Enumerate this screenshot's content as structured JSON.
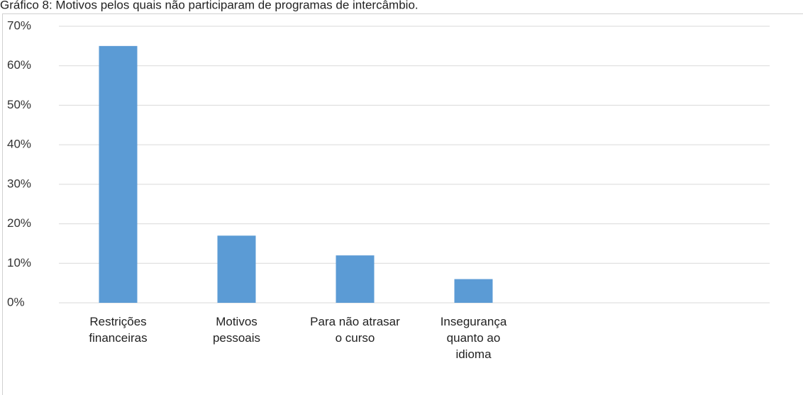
{
  "chart_data": {
    "type": "bar",
    "title": "Gráfico 8: Motivos pelos quais não participaram de programas de intercâmbio.",
    "categories": [
      "Restrições financeiras",
      "Motivos pessoais",
      "Para não atrasar o curso",
      "Insegurança quanto ao idioma",
      null,
      null
    ],
    "values": [
      65,
      17,
      12,
      6,
      null,
      null
    ],
    "color": "#5b9bd5",
    "ylim": [
      0,
      70
    ],
    "yticks": [
      {
        "value": 0,
        "label": "0%"
      },
      {
        "value": 10,
        "label": "10%"
      },
      {
        "value": 20,
        "label": "20%"
      },
      {
        "value": 30,
        "label": "30%"
      },
      {
        "value": 40,
        "label": "40%"
      },
      {
        "value": 50,
        "label": "50%"
      },
      {
        "value": 60,
        "label": "60%"
      },
      {
        "value": 70,
        "label": "70%"
      }
    ],
    "grid": true
  }
}
